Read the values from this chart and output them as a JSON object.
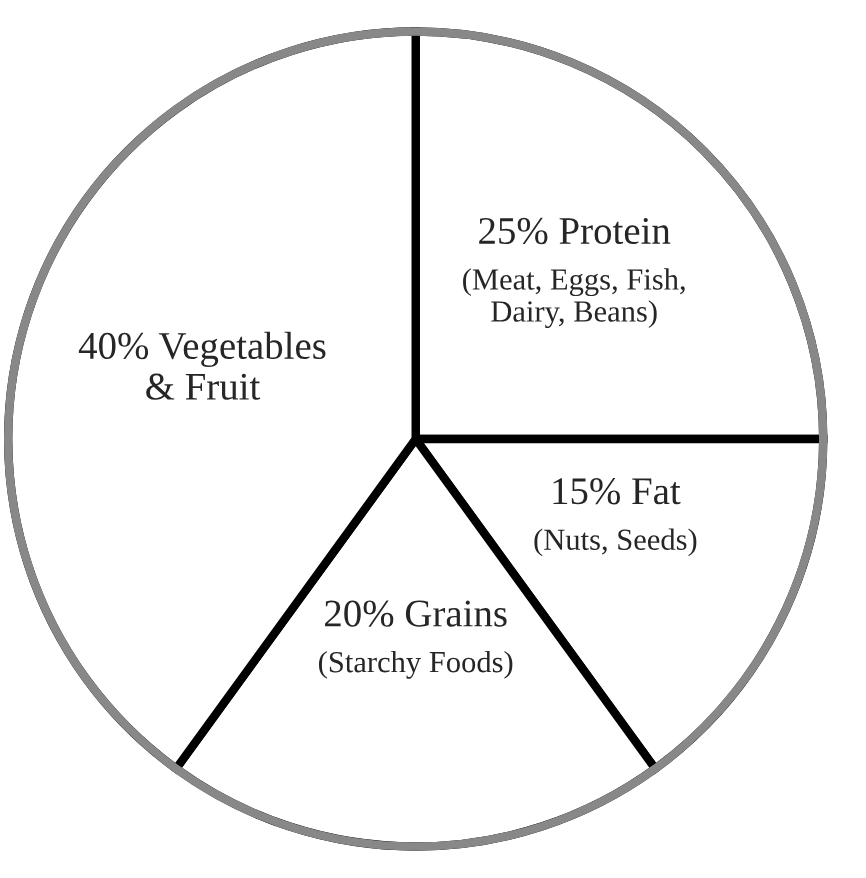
{
  "chart_data": {
    "type": "pie",
    "categories": [
      "25% Protein",
      "15% Fat",
      "20% Grains",
      "40% Vegetables\n& Fruit"
    ],
    "values": [
      25,
      15,
      20,
      40
    ],
    "colors": [
      "#ffffff",
      "#ffffff",
      "#ffffff",
      "#ffffff"
    ],
    "annotations": [
      "(Meat, Eggs, Fish,\nDairy, Beans)",
      "(Nuts, Seeds)",
      "(Starchy Foods)"
    ]
  }
}
